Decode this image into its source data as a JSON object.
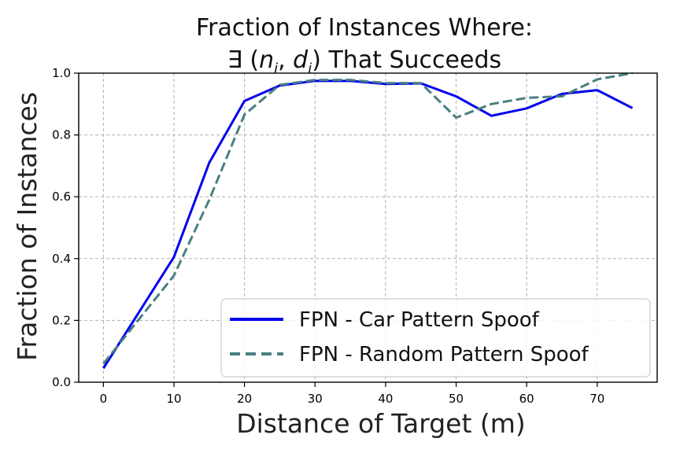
{
  "chart_data": {
    "type": "line",
    "title_line1": "Fraction of Instances Where:",
    "title_line2_prefix": "∃ (",
    "title_line2_math": {
      "n": "n",
      "n_sub": "i",
      "sep": ", ",
      "d": "d",
      "d_sub": "i"
    },
    "title_line2_suffix": ") That Succeeds",
    "xlabel": "Distance of Target (m)",
    "ylabel": "Fraction of Instances",
    "xlim": [
      -3.5,
      78.5
    ],
    "ylim": [
      0.0,
      1.0
    ],
    "xticks": [
      0,
      10,
      20,
      30,
      40,
      50,
      60,
      70
    ],
    "yticks": [
      0.0,
      0.2,
      0.4,
      0.6,
      0.8,
      1.0
    ],
    "ytick_labels": [
      "0.0",
      "0.2",
      "0.4",
      "0.6",
      "0.8",
      "1.0"
    ],
    "grid": true,
    "legend_position": "lower right",
    "series": [
      {
        "name": "FPN - Car Pattern Spoof",
        "color": "#0000ee",
        "style": "solid",
        "x": [
          0,
          10,
          15,
          20,
          25,
          30,
          35,
          40,
          45,
          50,
          55,
          60,
          65,
          70,
          75
        ],
        "y": [
          0.045,
          0.405,
          0.71,
          0.91,
          0.96,
          0.975,
          0.975,
          0.965,
          0.967,
          0.925,
          0.862,
          0.886,
          0.933,
          0.945,
          0.887
        ]
      },
      {
        "name": "FPN - Random Pattern Spoof",
        "color": "#4a7f80",
        "style": "dashed",
        "x": [
          0,
          10,
          15,
          20,
          25,
          30,
          35,
          40,
          45,
          50,
          55,
          60,
          65,
          70,
          75
        ],
        "y": [
          0.06,
          0.345,
          0.59,
          0.866,
          0.962,
          0.978,
          0.978,
          0.968,
          0.968,
          0.856,
          0.9,
          0.92,
          0.925,
          0.98,
          1.0
        ]
      }
    ]
  }
}
